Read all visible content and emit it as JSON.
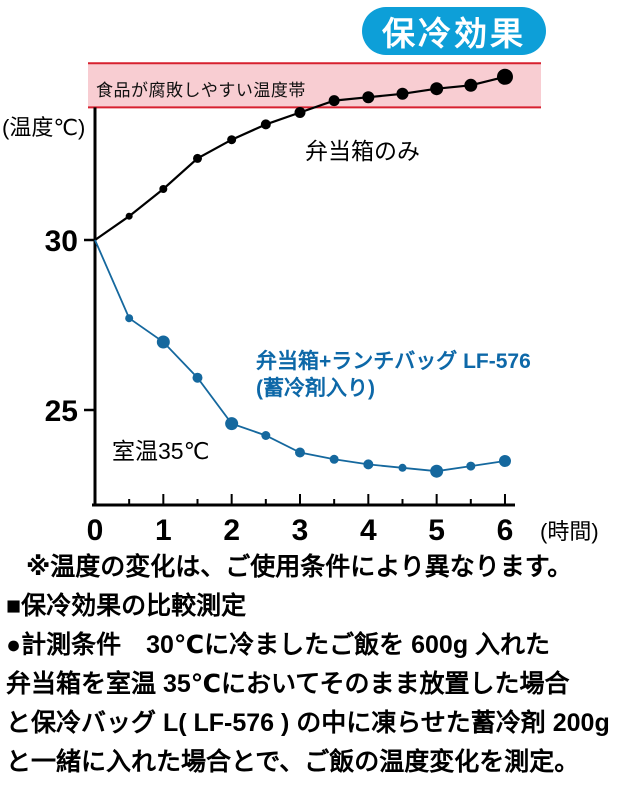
{
  "title": "保冷効果",
  "colors": {
    "title_badge": "#0d9fd8",
    "danger_band_fill": "#f8cdd2",
    "danger_band_edge": "#d7202f",
    "series_bento_only": "#000000",
    "series_bento_bag": "#15689e",
    "blue_label": "#0d68a8"
  },
  "chart_data": {
    "type": "line",
    "title": "保冷効果",
    "xlabel": "(時間)",
    "ylabel": "(温度℃)",
    "x": [
      0,
      0.5,
      1,
      1.5,
      2,
      2.5,
      3,
      3.5,
      4,
      4.5,
      5,
      5.5,
      6
    ],
    "x_ticks": [
      0,
      1,
      2,
      3,
      4,
      5,
      6
    ],
    "y_ticks": [
      30,
      25
    ],
    "ylim": [
      22.2,
      35.2
    ],
    "grid": false,
    "danger_band": {
      "label": "食品が腐敗しやすい温度帯",
      "from": 33.9,
      "to": 35.2,
      "fill": "#f8cdd2",
      "edge": "#d7202f"
    },
    "series": [
      {
        "name": "弁当箱のみ",
        "color": "#000000",
        "line_width": 2.2,
        "values": [
          30,
          30.7,
          31.5,
          32.4,
          32.95,
          33.4,
          33.75,
          34.1,
          34.2,
          34.3,
          34.45,
          34.55,
          34.8
        ],
        "dot_radii": [
          0,
          3.5,
          4,
          4.5,
          4.5,
          5,
          5.5,
          5.5,
          6,
          6,
          6.5,
          6.5,
          8
        ]
      },
      {
        "name": "弁当箱+ランチバッグ LF-576 (蓄冷剤入り)",
        "color": "#15689e",
        "line_width": 1.8,
        "values": [
          30,
          27.7,
          27.0,
          25.95,
          24.6,
          24.25,
          23.75,
          23.55,
          23.4,
          23.3,
          23.2,
          23.35,
          23.5
        ],
        "dot_radii": [
          0,
          4,
          6.5,
          5,
          6.5,
          4.5,
          5,
          4.5,
          5,
          4,
          6.5,
          4.5,
          6
        ]
      }
    ],
    "annotations": [
      {
        "text": "室温35℃"
      },
      {
        "text": "弁当箱のみ"
      },
      {
        "text": "弁当箱+ランチバッグ LF-576"
      },
      {
        "text": "(蓄冷剤入り)"
      }
    ]
  },
  "labels": {
    "band": "食品が腐敗しやすい温度帯",
    "ylabel": "(温度℃)",
    "xlabel": "(時間)",
    "series_black": "弁当箱のみ",
    "series_blue_line1": "弁当箱+ランチバッグ LF-576",
    "series_blue_line2": "(蓄冷剤入り)",
    "room_temp": "室温35℃"
  },
  "footer": {
    "lines": [
      "※温度の変化は、ご使用条件により異なります。",
      "■保冷効果の比較測定",
      "●計測条件　30℃に冷ましたご飯を 600g 入れた",
      "弁当箱を室温 35℃においてそのまま放置した場合",
      "と保冷バッグ L( LF-576 ) の中に凍らせた蓄冷剤 200g",
      "と一緒に入れた場合とで、ご飯の温度変化を測定。"
    ]
  }
}
